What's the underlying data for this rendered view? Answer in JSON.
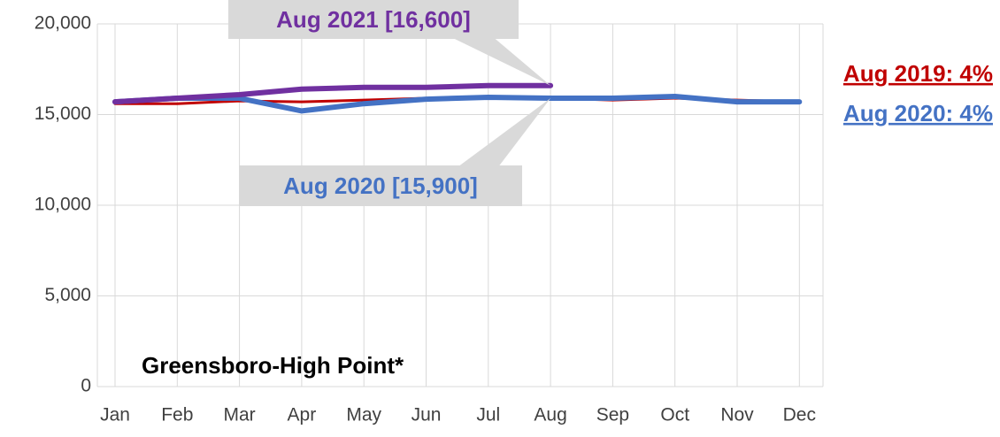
{
  "chart_data": {
    "type": "line",
    "title": "Greensboro-High Point*",
    "categories": [
      "Jan",
      "Feb",
      "Mar",
      "Apr",
      "May",
      "Jun",
      "Jul",
      "Aug",
      "Sep",
      "Oct",
      "Nov",
      "Dec"
    ],
    "series": [
      {
        "name": "2019",
        "color": "#c00000",
        "values": [
          15600,
          15600,
          15750,
          15700,
          15800,
          15900,
          15950,
          15900,
          15800,
          15900,
          15800,
          15700
        ]
      },
      {
        "name": "2020",
        "color": "#4472c4",
        "values": [
          15700,
          15900,
          15900,
          15200,
          15600,
          15850,
          15950,
          15900,
          15900,
          16000,
          15700,
          15700
        ]
      },
      {
        "name": "2021",
        "color": "#7030a0",
        "values": [
          15700,
          15900,
          16100,
          16400,
          16500,
          16500,
          16600,
          16600,
          null,
          null,
          null,
          null
        ]
      }
    ],
    "annotations": [
      "Aug 2021 [16,600]",
      "Aug 2020 [15,900]",
      "Aug 2019: 4%",
      "Aug 2020: 4%"
    ],
    "ylim": [
      0,
      20000
    ],
    "yticks": [
      0,
      {
        "value": 5000,
        "label": "5,000"
      },
      {
        "value": 10000,
        "label": "10,000"
      },
      {
        "value": 15000,
        "label": "15,000"
      },
      {
        "value": 20000,
        "label": "20,000"
      }
    ],
    "grid": true
  }
}
